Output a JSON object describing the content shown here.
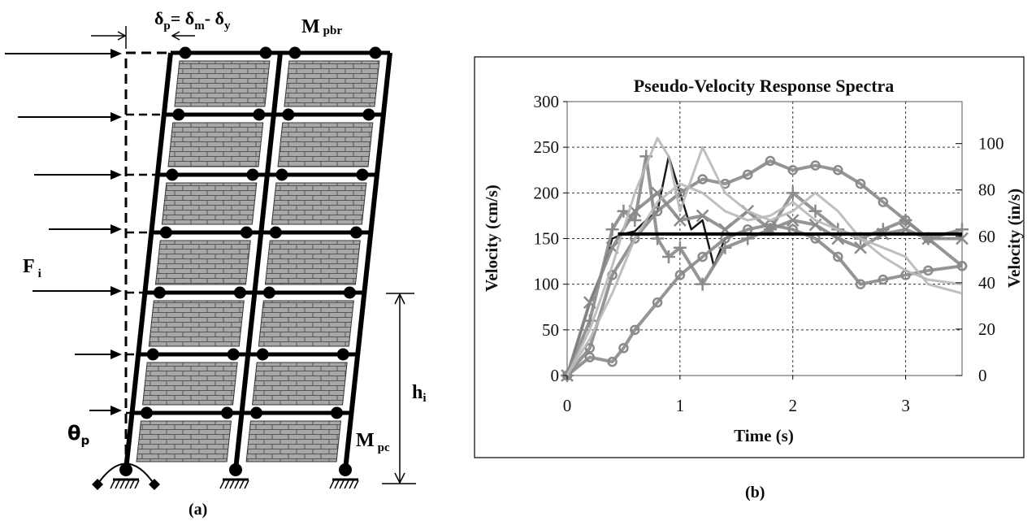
{
  "frame": {
    "delta_label": {
      "d1": "δ",
      "s1": "p",
      "eq": "= δ",
      "s2": "m",
      "minus": "- δ",
      "s3": "y"
    },
    "mpbr_label": {
      "m": "M",
      "sub": "pbr"
    },
    "mpc_label": {
      "m": "M",
      "sub": "pc"
    },
    "force_label": {
      "f": "F",
      "sub": "i"
    },
    "height_label": {
      "h": "h",
      "sub": "i"
    },
    "theta_label": {
      "t": "θ",
      "sub": "p"
    },
    "caption": "(a)"
  },
  "panel_b": {
    "caption": "(b)"
  },
  "colors": {
    "frame": "#000000",
    "infill": "#a8a8a8",
    "brick_line": "#555555",
    "series_gray": "#8a8a8a",
    "series_light": "#b8b8b8",
    "series_black": "#000000"
  },
  "chart_data": {
    "type": "line",
    "title": "Pseudo-Velocity Response Spectra",
    "xlabel": "Time (s)",
    "ylabel": "Velocity (cm/s)",
    "y2label": "Velocity (in/s)",
    "xlim": [
      0,
      3.5
    ],
    "ylim": [
      0,
      300
    ],
    "y2lim": [
      0,
      118.11
    ],
    "xticks": [
      "0",
      "1",
      "2",
      "3"
    ],
    "yticks": [
      "0",
      "50",
      "100",
      "150",
      "200",
      "250",
      "300"
    ],
    "y2ticks": [
      "0",
      "20",
      "40",
      "60",
      "80",
      "100"
    ],
    "grid": true,
    "series": [
      {
        "style": "black",
        "x": [
          0,
          0.1,
          0.2,
          0.3,
          0.4,
          0.5,
          0.6,
          0.7,
          0.8,
          0.9,
          1.0,
          1.1,
          1.2,
          1.3,
          1.4,
          1.5,
          2.0,
          2.5,
          3.0,
          3.5
        ],
        "y": [
          0,
          40,
          80,
          110,
          150,
          155,
          158,
          170,
          180,
          240,
          200,
          160,
          170,
          120,
          150,
          155,
          155,
          155,
          155,
          155
        ]
      },
      {
        "style": "gray-circle",
        "x": [
          0,
          0.2,
          0.4,
          0.6,
          0.8,
          1.0,
          1.2,
          1.4,
          1.6,
          1.8,
          2.0,
          2.2,
          2.4,
          2.6,
          2.8,
          3.0,
          3.2,
          3.5
        ],
        "y": [
          0,
          30,
          110,
          150,
          180,
          200,
          215,
          210,
          220,
          235,
          225,
          230,
          225,
          210,
          190,
          170,
          150,
          120
        ]
      },
      {
        "style": "gray-circle",
        "x": [
          0,
          0.2,
          0.4,
          0.5,
          0.6,
          0.8,
          1.0,
          1.2,
          1.4,
          1.6,
          1.8,
          2.0,
          2.2,
          2.4,
          2.6,
          2.8,
          3.0,
          3.2,
          3.5
        ],
        "y": [
          0,
          20,
          15,
          30,
          50,
          80,
          110,
          130,
          150,
          160,
          165,
          160,
          150,
          130,
          100,
          105,
          110,
          115,
          120
        ]
      },
      {
        "style": "gray-plus",
        "x": [
          0,
          0.2,
          0.4,
          0.5,
          0.6,
          0.7,
          0.8,
          0.9,
          1.0,
          1.2,
          1.4,
          1.6,
          1.8,
          2.0,
          2.2,
          2.4,
          2.6,
          2.8,
          3.0,
          3.2,
          3.5
        ],
        "y": [
          0,
          60,
          160,
          180,
          170,
          240,
          150,
          130,
          140,
          100,
          140,
          150,
          160,
          200,
          180,
          160,
          150,
          160,
          170,
          150,
          160
        ]
      },
      {
        "style": "gray-x",
        "x": [
          0,
          0.2,
          0.4,
          0.6,
          0.8,
          1.0,
          1.2,
          1.4,
          1.6,
          1.8,
          2.0,
          2.2,
          2.4,
          2.6,
          2.8,
          3.0,
          3.2,
          3.5
        ],
        "y": [
          0,
          80,
          140,
          180,
          200,
          170,
          175,
          160,
          180,
          160,
          170,
          165,
          150,
          140,
          155,
          160,
          150,
          150
        ]
      },
      {
        "style": "light",
        "x": [
          0,
          0.2,
          0.4,
          0.6,
          0.8,
          0.9,
          1.0,
          1.2,
          1.4,
          1.6,
          1.8,
          2.0,
          2.2,
          2.4,
          2.6,
          2.8,
          3.0,
          3.2,
          3.5
        ],
        "y": [
          0,
          50,
          120,
          200,
          260,
          240,
          180,
          250,
          200,
          180,
          170,
          180,
          200,
          180,
          150,
          140,
          130,
          100,
          90
        ]
      },
      {
        "style": "light",
        "x": [
          0,
          0.2,
          0.4,
          0.6,
          0.8,
          1.0,
          1.2,
          1.4,
          1.6,
          1.8,
          2.0,
          2.2,
          2.4,
          2.6,
          2.8,
          3.0,
          3.2,
          3.5
        ],
        "y": [
          0,
          40,
          90,
          150,
          190,
          210,
          200,
          180,
          170,
          175,
          190,
          170,
          160,
          150,
          130,
          115,
          105,
          100
        ]
      }
    ]
  }
}
